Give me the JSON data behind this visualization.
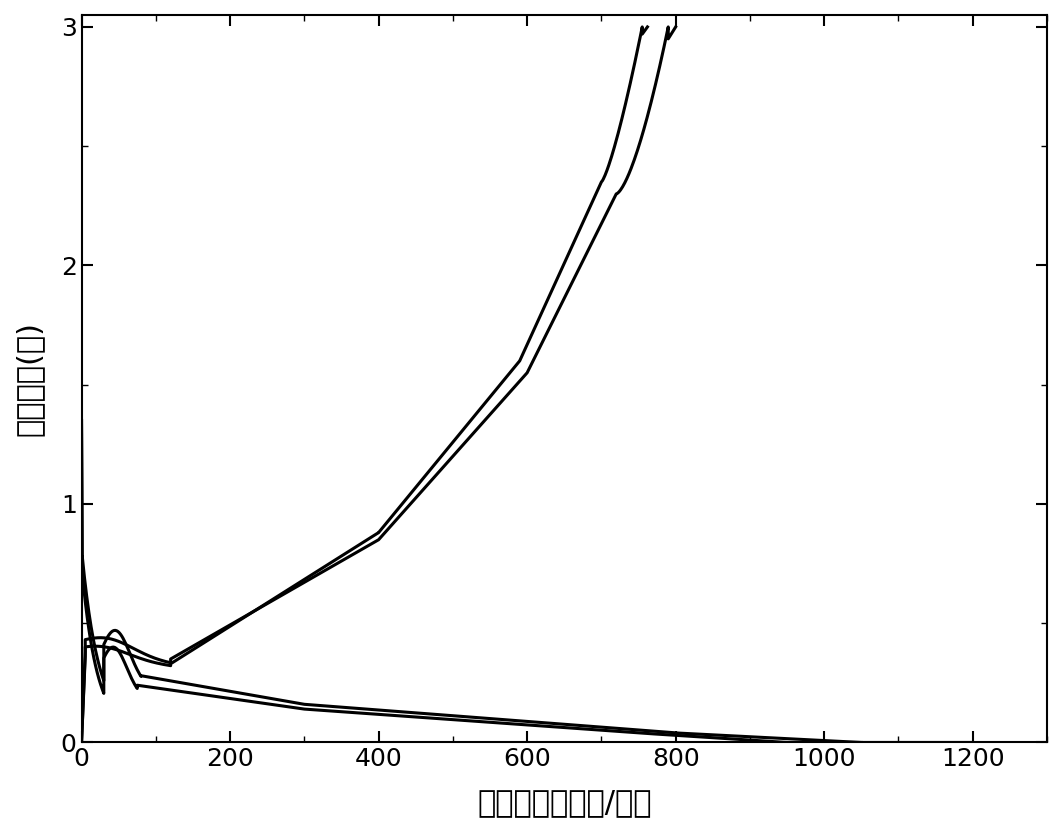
{
  "xlabel": "比容量（毫安时/克）",
  "ylabel": "电池电压(伏)",
  "xlim": [
    0,
    1300
  ],
  "ylim": [
    0,
    3.05
  ],
  "xticks": [
    0,
    200,
    400,
    600,
    800,
    1000,
    1200
  ],
  "yticks": [
    0,
    1,
    2,
    3
  ],
  "line_color": "#000000",
  "line_width": 2.2,
  "background_color": "#ffffff",
  "xlabel_fontsize": 22,
  "ylabel_fontsize": 22,
  "tick_fontsize": 18
}
